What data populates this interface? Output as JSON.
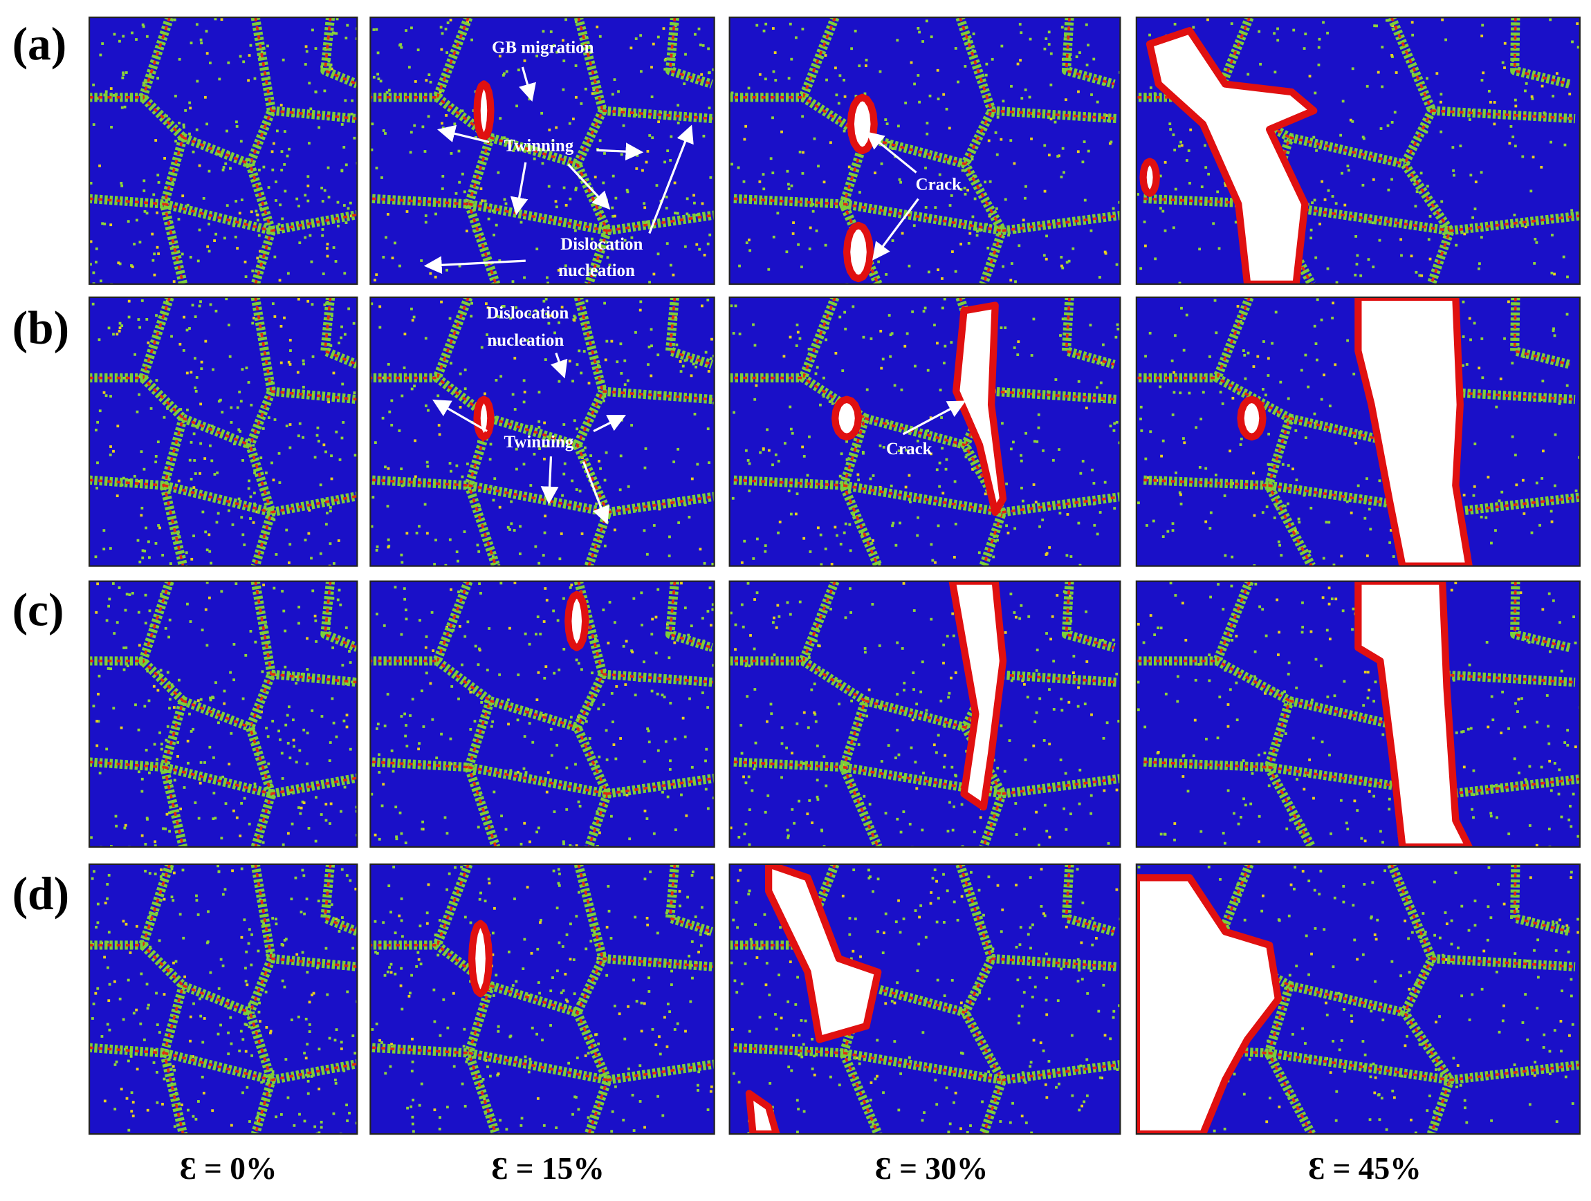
{
  "row_labels": [
    "(a)",
    "(b)",
    "(c)",
    "(d)"
  ],
  "column_labels": [
    "Ɛ = 0%",
    "Ɛ = 15%",
    "Ɛ = 30%",
    "Ɛ = 45%"
  ],
  "annotations": [
    [
      "GB migration",
      "Twinning",
      "Dislocation",
      "nucleation"
    ],
    [
      "Crack"
    ],
    [
      "Dislocation",
      "nucleation",
      "Twinning"
    ],
    [
      "Crack"
    ]
  ]
}
